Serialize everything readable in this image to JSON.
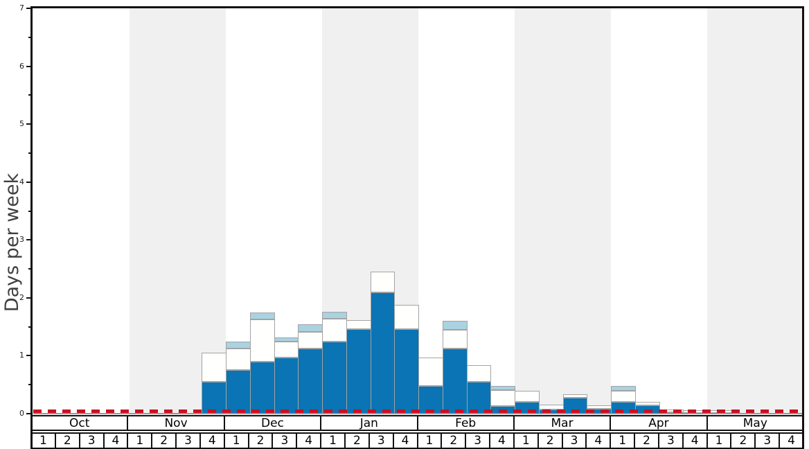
{
  "colors": {
    "bar_dark_blue": "#0a74b4",
    "bar_white": "#fffffe",
    "bar_light_blue": "#aad2e0",
    "bar_border": "#a3a3a3",
    "band_gray": "#f0f0f0",
    "reference_red": "#cb0e22",
    "axis_black": "#111111",
    "baseline_gray": "#999999",
    "text_gray": "#3f3f3f"
  },
  "chart_data": {
    "type": "bar",
    "stacked": true,
    "title": "",
    "xlabel": "",
    "ylabel": "Days per week",
    "ylim": [
      0,
      7
    ],
    "ytick_labels": [
      "0",
      "1",
      "2",
      "3",
      "4",
      "5",
      "6",
      "7"
    ],
    "grid": "off",
    "legend": "none",
    "months": [
      "Oct",
      "Nov",
      "Dec",
      "Jan",
      "Feb",
      "Mar",
      "Apr",
      "May"
    ],
    "weeks_per_month": 4,
    "week_labels": [
      "1",
      "2",
      "3",
      "4"
    ],
    "shaded_months": [
      "Nov",
      "Jan",
      "Mar",
      "May"
    ],
    "reference_line": {
      "value": 0.05,
      "style": "dashed",
      "color": "#cb0e22"
    },
    "categories": [
      "Oct-1",
      "Oct-2",
      "Oct-3",
      "Oct-4",
      "Nov-1",
      "Nov-2",
      "Nov-3",
      "Nov-4",
      "Dec-1",
      "Dec-2",
      "Dec-3",
      "Dec-4",
      "Jan-1",
      "Jan-2",
      "Jan-3",
      "Jan-4",
      "Feb-1",
      "Feb-2",
      "Feb-3",
      "Feb-4",
      "Mar-1",
      "Mar-2",
      "Mar-3",
      "Mar-4",
      "Apr-1",
      "Apr-2",
      "Apr-3",
      "Apr-4",
      "May-1",
      "May-2",
      "May-3",
      "May-4"
    ],
    "series": [
      {
        "name": "dark-blue-bottom-segment",
        "color": "#0a74b4",
        "values": [
          0,
          0,
          0,
          0,
          0,
          0,
          0,
          0.55,
          0.75,
          0.9,
          0.97,
          1.12,
          1.25,
          1.46,
          2.1,
          1.46,
          0.48,
          1.12,
          0.55,
          0.13,
          0.2,
          0.07,
          0.28,
          0.08,
          0.2,
          0.14,
          0.02,
          0.01,
          0.01,
          0,
          0,
          0
        ]
      },
      {
        "name": "white-middle-segment",
        "color": "#fffffe",
        "values": [
          0,
          0,
          0,
          0,
          0,
          0,
          0,
          0.5,
          0.38,
          0.73,
          0.28,
          0.29,
          0.39,
          0.15,
          0.35,
          0.42,
          0.49,
          0.33,
          0.29,
          0.28,
          0.2,
          0.08,
          0.06,
          0.06,
          0.2,
          0.06,
          0.05,
          0.05,
          0.05,
          0,
          0,
          0
        ]
      },
      {
        "name": "light-blue-top-segment",
        "color": "#aad2e0",
        "values": [
          0,
          0,
          0,
          0,
          0,
          0,
          0,
          0,
          0.12,
          0.12,
          0.07,
          0.13,
          0.12,
          0,
          0,
          0,
          0,
          0.15,
          0,
          0.07,
          0,
          0,
          0,
          0,
          0.08,
          0,
          0,
          0,
          0,
          0,
          0,
          0
        ]
      }
    ]
  }
}
